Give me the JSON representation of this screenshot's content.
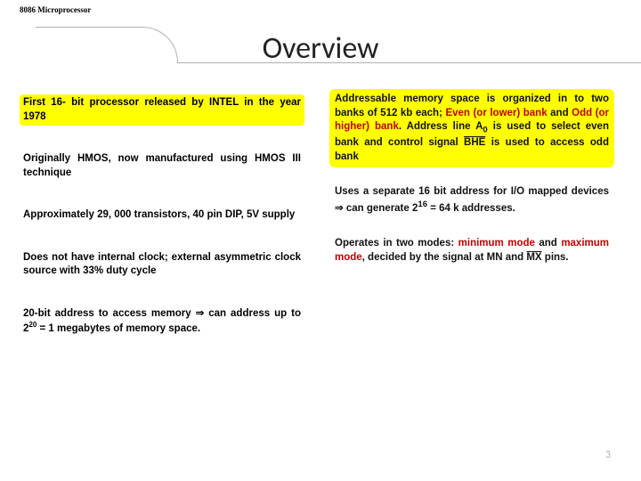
{
  "header": {
    "label": "8086 Microprocessor"
  },
  "title": "Overview",
  "left": {
    "b1": "First 16- bit processor released by INTEL in the year 1978",
    "b2": "Originally HMOS, now manufactured using HMOS III technique",
    "b3": "Approximately 29, 000 transistors, 40 pin DIP, 5V supply",
    "b4": "Does not have internal clock; external asymmetric clock source with 33% duty cycle",
    "b5_a": "20-bit address to access memory ",
    "b5_b": " can address up to 2",
    "b5_sup": "20",
    "b5_c": " = 1 megabytes of memory space."
  },
  "right": {
    "r1_a": "Addressable memory space is organized in to two banks of 512 kb each; ",
    "r1_even": "Even (or lower) bank",
    "r1_b": " and ",
    "r1_odd": "Odd (or higher) bank",
    "r1_c": ". Address line A",
    "r1_sub": "0",
    "r1_d": " is used to select even bank and control signal ",
    "r1_bhe": "BHE",
    "r1_e": " is used to access odd bank",
    "r2_a": "Uses a separate 16 bit address for I/O mapped devices ",
    "r2_b": " can generate 2",
    "r2_sup": "16",
    "r2_c": " = 64 k addresses.",
    "r3_a": "Operates in two modes: ",
    "r3_min": "minimum mode",
    "r3_b": " and ",
    "r3_max": "maximum mode",
    "r3_c": ", decided by the signal at MN and ",
    "r3_mx": "MX",
    "r3_d": " pins."
  },
  "arrow": "⇒",
  "pagenum": "3",
  "colors": {
    "highlight": "#ffff00",
    "red": "#c00000",
    "rule": "#b0b0b0"
  }
}
